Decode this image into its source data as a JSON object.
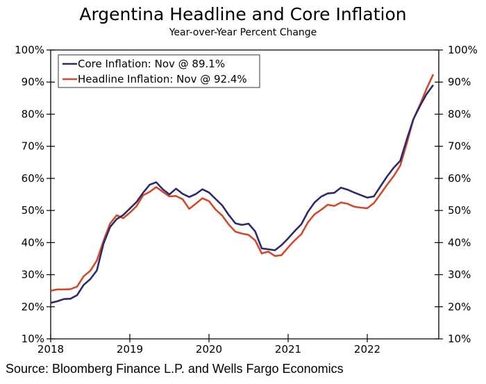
{
  "chart_data": {
    "type": "line",
    "title": "Argentina Headline and Core Inflation",
    "subtitle": "Year-over-Year Percent Change",
    "source": "Source: Bloomberg Finance L.P. and Wells Fargo Economics",
    "xlabel": "",
    "ylabel": "",
    "x_ticks": [
      "2018",
      "2019",
      "2020",
      "2021",
      "2022"
    ],
    "y_ticks": [
      "10%",
      "20%",
      "30%",
      "40%",
      "50%",
      "60%",
      "70%",
      "80%",
      "90%",
      "100%"
    ],
    "ylim": [
      10,
      100
    ],
    "x_start": "2018-01",
    "x_end": "2022-11",
    "frequency": "monthly",
    "grid": false,
    "legend_position": "top-left",
    "series": [
      {
        "name": "Core Inflation: Nov @ 89.1%",
        "color": "#2b2a6e",
        "values": [
          21.2,
          21.7,
          22.4,
          22.5,
          23.6,
          26.8,
          28.6,
          31.3,
          39.6,
          44.8,
          47.3,
          48.6,
          50.6,
          52.6,
          55.5,
          58.0,
          58.8,
          56.6,
          55.0,
          56.8,
          55.2,
          54.2,
          55.1,
          56.6,
          55.6,
          53.6,
          51.6,
          48.6,
          46.0,
          45.5,
          45.9,
          43.5,
          38.2,
          37.9,
          37.6,
          39.2,
          41.3,
          43.6,
          45.7,
          49.6,
          52.5,
          54.3,
          55.3,
          55.5,
          57.1,
          56.5,
          55.6,
          54.8,
          54.0,
          54.4,
          57.5,
          60.6,
          63.3,
          65.5,
          72.2,
          78.5,
          82.6,
          86.3,
          89.1
        ]
      },
      {
        "name": "Headline Inflation: Nov @ 92.4%",
        "color": "#d24a2a",
        "values": [
          25.0,
          25.4,
          25.4,
          25.5,
          26.3,
          29.5,
          31.2,
          34.4,
          40.5,
          45.9,
          48.5,
          47.6,
          49.3,
          51.3,
          54.7,
          55.8,
          57.3,
          55.8,
          54.4,
          54.5,
          53.5,
          50.5,
          52.1,
          53.8,
          52.9,
          50.3,
          48.4,
          45.6,
          43.4,
          42.8,
          42.4,
          40.7,
          36.6,
          37.2,
          35.8,
          36.1,
          38.5,
          40.7,
          42.6,
          46.3,
          48.8,
          50.2,
          51.8,
          51.4,
          52.5,
          52.1,
          51.2,
          50.9,
          50.7,
          52.3,
          55.1,
          58.0,
          60.7,
          64.0,
          71.0,
          78.5,
          83.0,
          88.0,
          92.4
        ]
      }
    ]
  }
}
